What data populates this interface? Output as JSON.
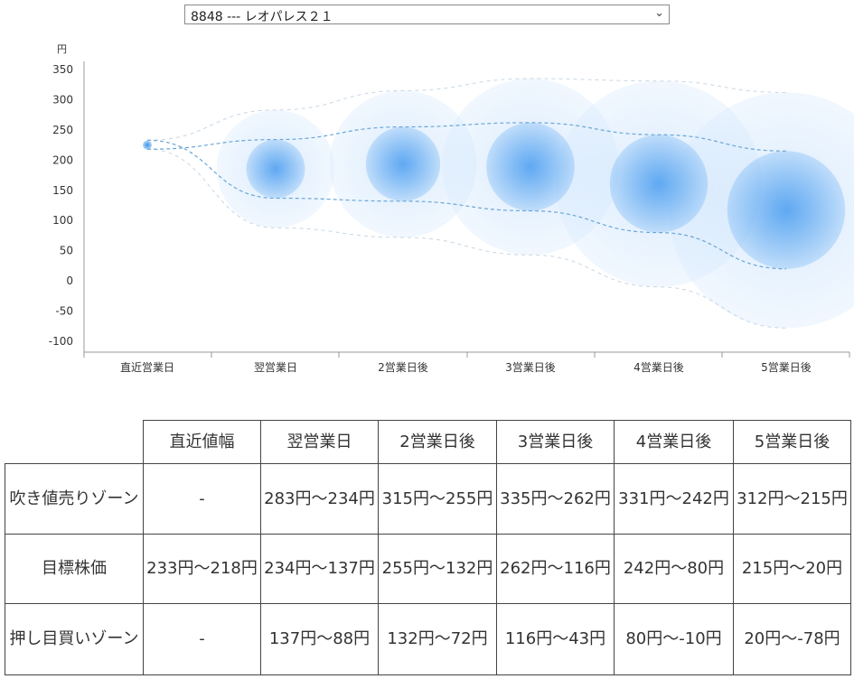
{
  "selector": {
    "value": "8848 --- レオパレス２１",
    "arrow": "⌄"
  },
  "chart_data": {
    "type": "bubble",
    "yunit": "円",
    "ylim": [
      -100,
      350
    ],
    "yticks": [
      350,
      300,
      250,
      200,
      150,
      100,
      50,
      0,
      -50,
      -100
    ],
    "categories": [
      "直近営業日",
      "翌営業日",
      "2営業日後",
      "3営業日後",
      "4営業日後",
      "5営業日後"
    ],
    "center": [
      225,
      185,
      193,
      189,
      161,
      118
    ],
    "upper_outer": [
      233,
      283,
      315,
      335,
      331,
      312
    ],
    "upper_inner": [
      218,
      234,
      255,
      262,
      242,
      215
    ],
    "lower_inner": [
      233,
      137,
      132,
      116,
      80,
      20
    ],
    "lower_outer": [
      218,
      88,
      72,
      43,
      -10,
      -78
    ],
    "colors": {
      "bubble": "#4a9df0",
      "line": "#6ba6d6",
      "axis": "#999999"
    }
  },
  "table": {
    "headers": [
      "",
      "直近値幅",
      "翌営業日",
      "2営業日後",
      "3営業日後",
      "4営業日後",
      "5営業日後"
    ],
    "rows": [
      {
        "label": "吹き値売りゾーン",
        "cells": [
          "-",
          "283円～234円",
          "315円～255円",
          "335円～262円",
          "331円～242円",
          "312円～215円"
        ]
      },
      {
        "label": "目標株価",
        "cells": [
          "233円～218円",
          "234円～137円",
          "255円～132円",
          "262円～116円",
          "242円～80円",
          "215円～20円"
        ]
      },
      {
        "label": "押し目買いゾーン",
        "cells": [
          "-",
          "137円～88円",
          "132円～72円",
          "116円～43円",
          "80円～-10円",
          "20円～-78円"
        ]
      }
    ]
  }
}
